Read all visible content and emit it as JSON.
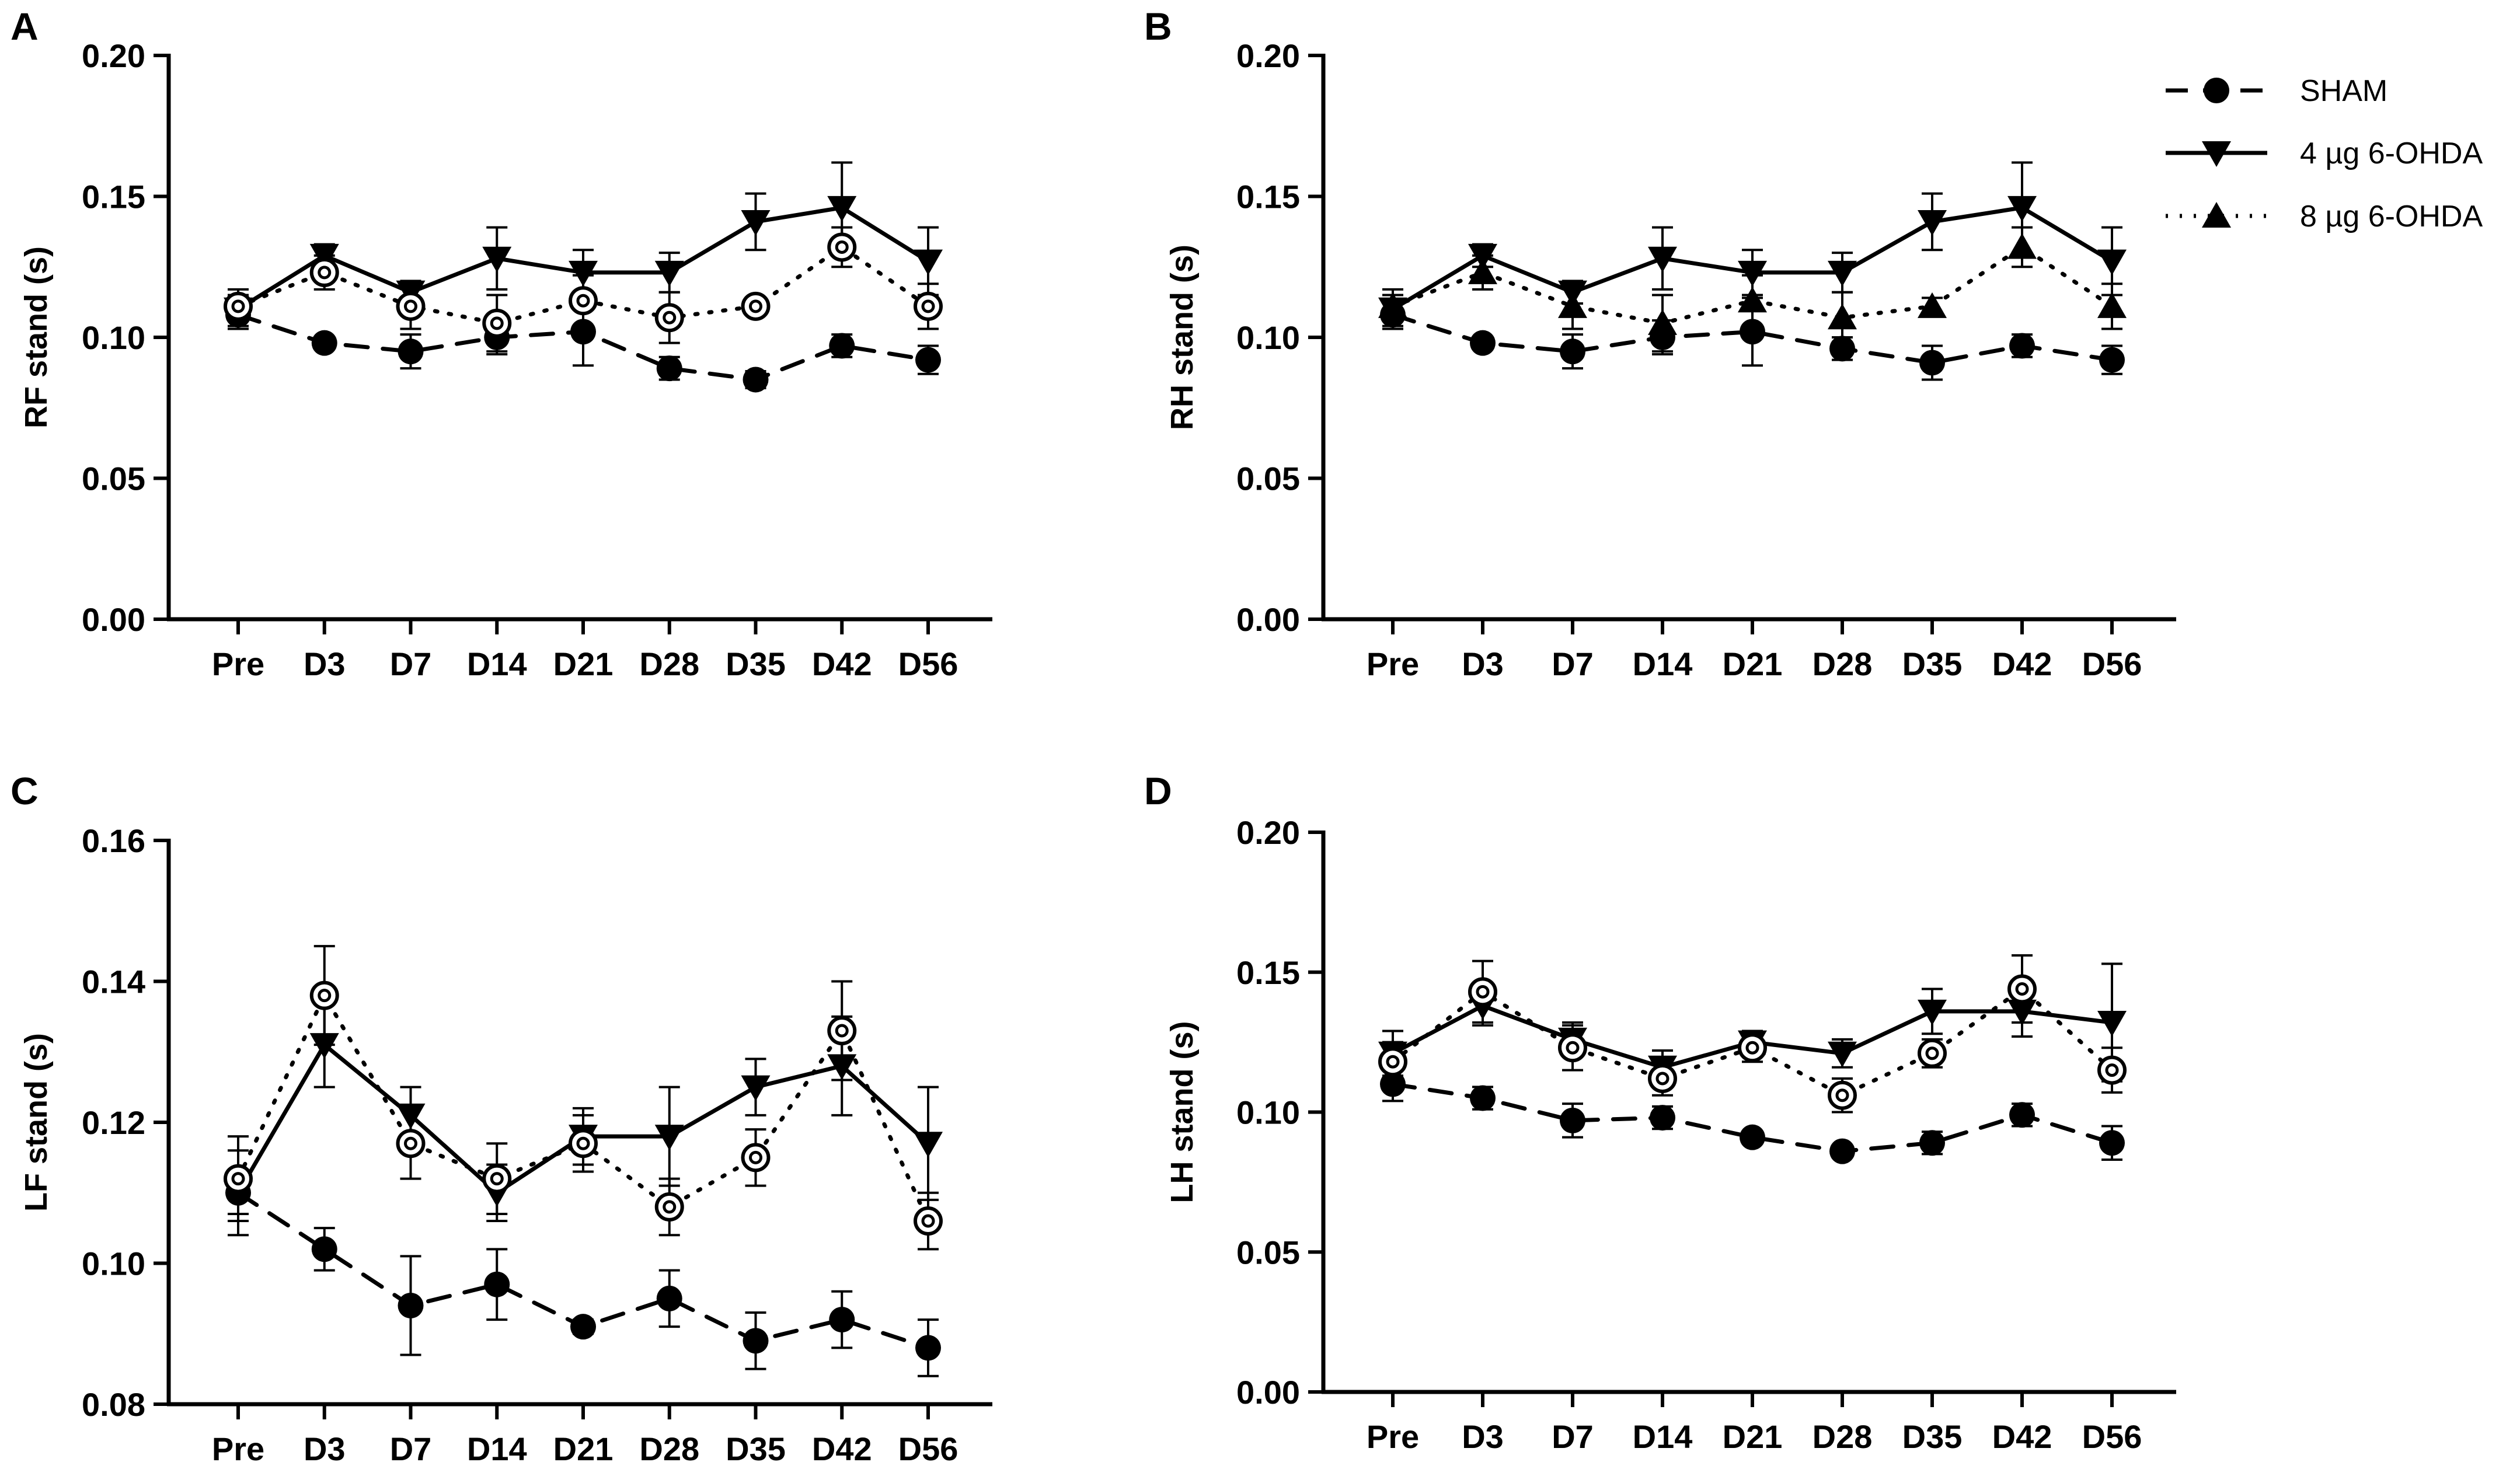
{
  "figure": {
    "legend": [
      {
        "name": "SHAM",
        "style": "dashed",
        "marker": "circle-filled"
      },
      {
        "name": "4 µg 6-OHDA",
        "style": "solid",
        "marker": "triangle-down"
      },
      {
        "name": "8 µg 6-OHDA",
        "style": "dotted",
        "marker": "triangle-up"
      }
    ],
    "colors": {
      "ink": "#000000",
      "background": "#ffffff"
    }
  },
  "chart_data": [
    {
      "panel": "A",
      "type": "line",
      "ylabel": "RF stand (s)",
      "xlabel": "",
      "categories": [
        "Pre",
        "D3",
        "D7",
        "D14",
        "D21",
        "D28",
        "D35",
        "D42",
        "D56"
      ],
      "ylim": [
        0,
        0.2
      ],
      "yticks": [
        "0.00",
        "0.05",
        "0.10",
        "0.15",
        "0.20"
      ],
      "third_marker": "circle-open",
      "series": [
        {
          "name": "SHAM",
          "values": [
            0.108,
            0.098,
            0.095,
            0.1,
            0.102,
            0.089,
            0.085,
            0.097,
            0.092
          ],
          "errors": [
            0.004,
            0.002,
            0.006,
            0.006,
            0.012,
            0.004,
            0.003,
            0.004,
            0.005
          ]
        },
        {
          "name": "4 µg 6-OHDA",
          "values": [
            0.11,
            0.129,
            0.116,
            0.128,
            0.123,
            0.123,
            0.141,
            0.146,
            0.127
          ],
          "errors": [
            0.007,
            0.004,
            0.004,
            0.011,
            0.008,
            0.007,
            0.01,
            0.016,
            0.012
          ]
        },
        {
          "name": "8 µg 6-OHDA",
          "values": [
            0.111,
            0.123,
            0.111,
            0.105,
            0.113,
            0.107,
            0.111,
            0.132,
            0.111
          ],
          "errors": [
            0.004,
            0.006,
            0.008,
            0.01,
            0.009,
            0.009,
            0.003,
            0.007,
            0.008
          ]
        }
      ]
    },
    {
      "panel": "B",
      "type": "line",
      "ylabel": "RH stand (s)",
      "xlabel": "",
      "categories": [
        "Pre",
        "D3",
        "D7",
        "D14",
        "D21",
        "D28",
        "D35",
        "D42",
        "D56"
      ],
      "ylim": [
        0,
        0.2
      ],
      "yticks": [
        "0.00",
        "0.05",
        "0.10",
        "0.15",
        "0.20"
      ],
      "third_marker": "triangle-up",
      "series": [
        {
          "name": "SHAM",
          "values": [
            0.108,
            0.098,
            0.095,
            0.1,
            0.102,
            0.096,
            0.091,
            0.097,
            0.092
          ],
          "errors": [
            0.004,
            0.002,
            0.006,
            0.006,
            0.012,
            0.004,
            0.006,
            0.004,
            0.005
          ]
        },
        {
          "name": "4 µg 6-OHDA",
          "values": [
            0.11,
            0.129,
            0.116,
            0.128,
            0.123,
            0.123,
            0.141,
            0.146,
            0.127
          ],
          "errors": [
            0.007,
            0.004,
            0.004,
            0.011,
            0.008,
            0.007,
            0.01,
            0.016,
            0.012
          ]
        },
        {
          "name": "8 µg 6-OHDA",
          "values": [
            0.111,
            0.123,
            0.111,
            0.105,
            0.113,
            0.107,
            0.111,
            0.132,
            0.111
          ],
          "errors": [
            0.004,
            0.006,
            0.008,
            0.01,
            0.009,
            0.009,
            0.003,
            0.007,
            0.008
          ]
        }
      ]
    },
    {
      "panel": "C",
      "type": "line",
      "ylabel": "LF stand (s)",
      "xlabel": "",
      "categories": [
        "Pre",
        "D3",
        "D7",
        "D14",
        "D21",
        "D28",
        "D35",
        "D42",
        "D56"
      ],
      "ylim": [
        0.08,
        0.16
      ],
      "yticks": [
        "0.08",
        "0.10",
        "0.12",
        "0.14",
        "0.16"
      ],
      "third_marker": "circle-open",
      "series": [
        {
          "name": "SHAM",
          "values": [
            0.11,
            0.102,
            0.094,
            0.097,
            0.091,
            0.095,
            0.089,
            0.092,
            0.088
          ],
          "errors": [
            0.003,
            0.003,
            0.007,
            0.005,
            0.001,
            0.004,
            0.004,
            0.004,
            0.004
          ]
        },
        {
          "name": "4 µg 6-OHDA",
          "values": [
            0.11,
            0.131,
            0.121,
            0.11,
            0.118,
            0.118,
            0.125,
            0.128,
            0.117
          ],
          "errors": [
            0.006,
            0.006,
            0.004,
            0.004,
            0.004,
            0.007,
            0.004,
            0.007,
            0.008
          ]
        },
        {
          "name": "8 µg 6-OHDA",
          "values": [
            0.112,
            0.138,
            0.117,
            0.112,
            0.117,
            0.108,
            0.115,
            0.133,
            0.106
          ],
          "errors": [
            0.006,
            0.007,
            0.005,
            0.005,
            0.004,
            0.004,
            0.004,
            0.007,
            0.004
          ]
        }
      ]
    },
    {
      "panel": "D",
      "type": "line",
      "ylabel": "LH stand (s)",
      "xlabel": "",
      "categories": [
        "Pre",
        "D3",
        "D7",
        "D14",
        "D21",
        "D28",
        "D35",
        "D42",
        "D56"
      ],
      "ylim": [
        0,
        0.2
      ],
      "yticks": [
        "0.00",
        "0.05",
        "0.10",
        "0.15",
        "0.20"
      ],
      "third_marker": "circle-open",
      "series": [
        {
          "name": "SHAM",
          "values": [
            0.11,
            0.105,
            0.097,
            0.098,
            0.091,
            0.086,
            0.089,
            0.099,
            0.089
          ],
          "errors": [
            0.006,
            0.004,
            0.006,
            0.004,
            0.002,
            0.002,
            0.004,
            0.004,
            0.006
          ]
        },
        {
          "name": "4 µg 6-OHDA",
          "values": [
            0.121,
            0.138,
            0.126,
            0.116,
            0.125,
            0.121,
            0.136,
            0.136,
            0.132
          ],
          "errors": [
            0.008,
            0.007,
            0.006,
            0.006,
            0.004,
            0.005,
            0.008,
            0.009,
            0.021
          ]
        },
        {
          "name": "8 µg 6-OHDA",
          "values": [
            0.118,
            0.143,
            0.123,
            0.112,
            0.123,
            0.106,
            0.121,
            0.144,
            0.115
          ],
          "errors": [
            0.007,
            0.011,
            0.008,
            0.006,
            0.005,
            0.006,
            0.005,
            0.012,
            0.008
          ]
        }
      ]
    }
  ]
}
